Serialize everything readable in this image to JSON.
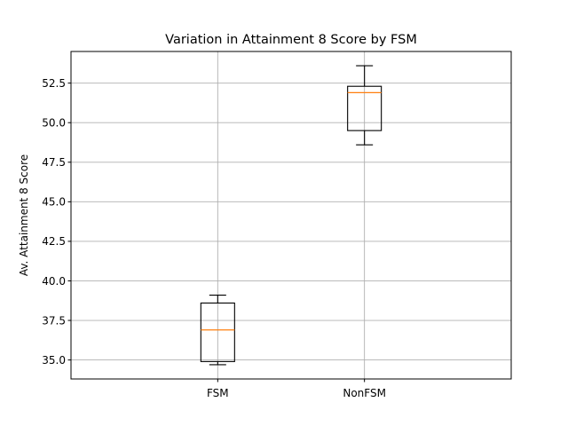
{
  "chart_data": {
    "type": "box",
    "title": "Variation in Attainment 8 Score by FSM",
    "xlabel": "",
    "ylabel": "Av. Attainment 8 Score",
    "ylim": [
      33.8,
      54.5
    ],
    "yticks": [
      35.0,
      37.5,
      40.0,
      42.5,
      45.0,
      47.5,
      50.0,
      52.5
    ],
    "ytick_labels": [
      "35.0",
      "37.5",
      "40.0",
      "42.5",
      "45.0",
      "47.5",
      "50.0",
      "52.5"
    ],
    "grid": true,
    "categories": [
      "FSM",
      "NonFSM"
    ],
    "boxes": [
      {
        "min": 34.7,
        "q1": 34.9,
        "median": 36.9,
        "q3": 38.6,
        "max": 39.1
      },
      {
        "min": 48.6,
        "q1": 49.5,
        "median": 51.9,
        "q3": 52.3,
        "max": 53.6
      }
    ],
    "colors": {
      "median": "#ff7f0e",
      "box": "#000000",
      "grid": "#b0b0b0"
    }
  }
}
